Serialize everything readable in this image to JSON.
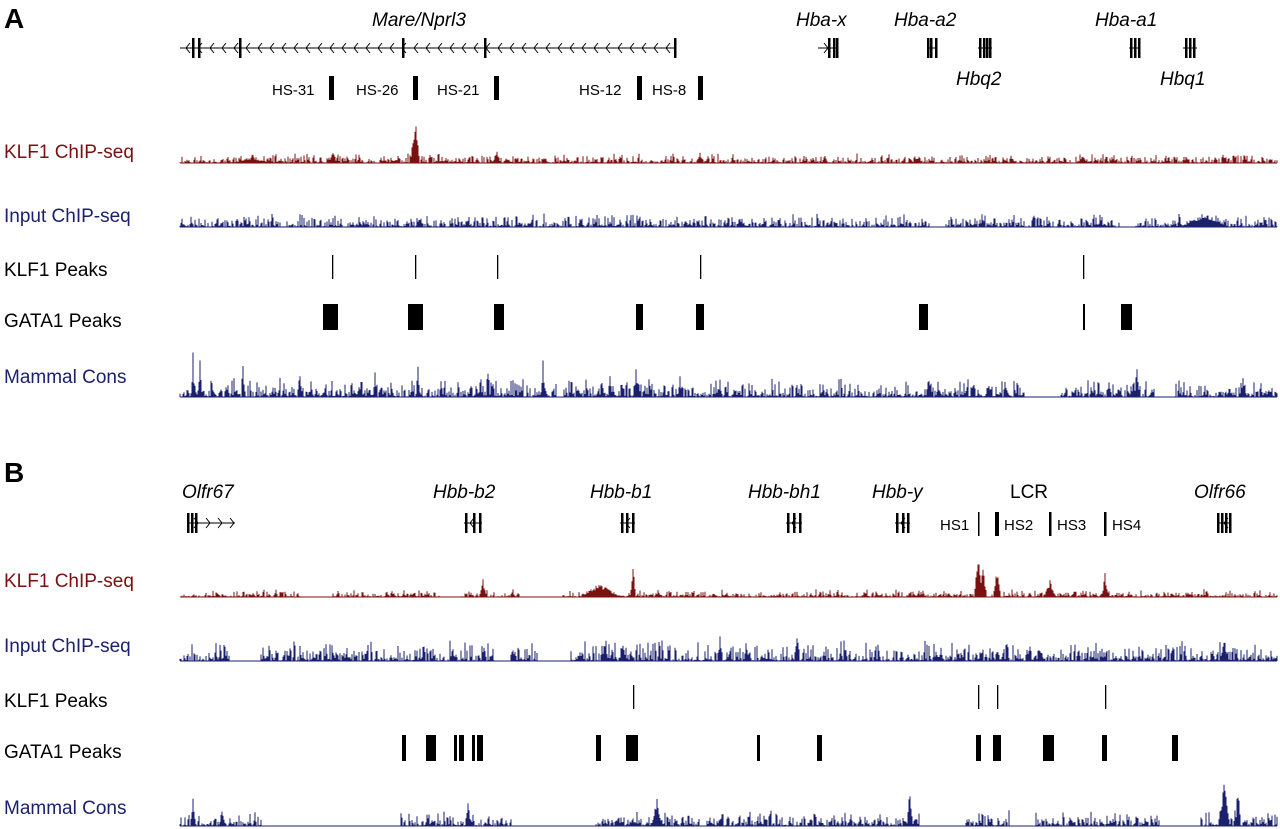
{
  "colors": {
    "klf1": "#7a1010",
    "input": "#1a1f6e",
    "cons": "#1a1f6e",
    "black": "#000000"
  },
  "panels": [
    {
      "letter": "A",
      "genes": [
        {
          "name": "Mare/Nprl3",
          "start": 180,
          "end": 675,
          "dir": "left",
          "exons": [
            193,
            199,
            240,
            403,
            485,
            675
          ]
        },
        {
          "name": "Hba-x",
          "start": 818,
          "end": 838,
          "dir": "right",
          "exons": [
            829,
            834,
            837
          ]
        },
        {
          "name": "Hba-a2",
          "start": 927,
          "end": 937,
          "dir": "none",
          "exons": [
            928,
            931,
            936
          ]
        },
        {
          "name": "Hbq2",
          "start": 978,
          "end": 992,
          "dir": "none",
          "exons": [
            980,
            984,
            987,
            990
          ]
        },
        {
          "name": "Hba-a1",
          "start": 1129,
          "end": 1140,
          "dir": "none",
          "exons": [
            1131,
            1135,
            1139
          ]
        },
        {
          "name": "Hbq1",
          "start": 1183,
          "end": 1197,
          "dir": "none",
          "exons": [
            1186,
            1190,
            1194
          ]
        }
      ],
      "sites": [
        {
          "label": "HS-31"
        },
        {
          "label": "HS-26"
        },
        {
          "label": "HS-21"
        },
        {
          "label": "HS-12"
        },
        {
          "label": "HS-8"
        }
      ],
      "tracks": [
        {
          "id": "klf1",
          "label": "KLF1 ChIP-seq"
        },
        {
          "id": "input",
          "label": "Input ChIP-seq"
        },
        {
          "id": "klf1_peaks",
          "label": "KLF1 Peaks"
        },
        {
          "id": "gata1_peaks",
          "label": "GATA1 Peaks"
        },
        {
          "id": "cons",
          "label": "Mammal Cons"
        }
      ]
    },
    {
      "letter": "B",
      "genes": [
        {
          "name": "Olfr67",
          "start": 188,
          "end": 235,
          "dir": "right",
          "exons": [
            188,
            192,
            196
          ]
        },
        {
          "name": "Hbb-b2",
          "start": 464,
          "end": 482,
          "dir": "left",
          "exons": [
            466,
            474,
            480
          ]
        },
        {
          "name": "Hbb-b1",
          "start": 620,
          "end": 635,
          "dir": "left",
          "exons": [
            622,
            627,
            633
          ]
        },
        {
          "name": "Hbb-bh1",
          "start": 786,
          "end": 802,
          "dir": "left",
          "exons": [
            788,
            794,
            800
          ]
        },
        {
          "name": "Hbb-y",
          "start": 895,
          "end": 910,
          "dir": "left",
          "exons": [
            897,
            903,
            908
          ]
        },
        {
          "name": "Olfr66",
          "start": 1218,
          "end": 1230,
          "dir": "left",
          "exons": [
            1218,
            1222,
            1226,
            1230
          ]
        }
      ],
      "lcr": {
        "title": "LCR",
        "sites": [
          {
            "label": "HS1"
          },
          {
            "label": "HS2"
          },
          {
            "label": "HS3"
          },
          {
            "label": "HS4"
          }
        ]
      },
      "tracks": [
        {
          "id": "klf1",
          "label": "KLF1 ChIP-seq"
        },
        {
          "id": "input",
          "label": "Input ChIP-seq"
        },
        {
          "id": "klf1_peaks",
          "label": "KLF1 Peaks"
        },
        {
          "id": "gata1_peaks",
          "label": "GATA1 Peaks"
        },
        {
          "id": "cons",
          "label": "Mammal Cons"
        }
      ]
    }
  ]
}
